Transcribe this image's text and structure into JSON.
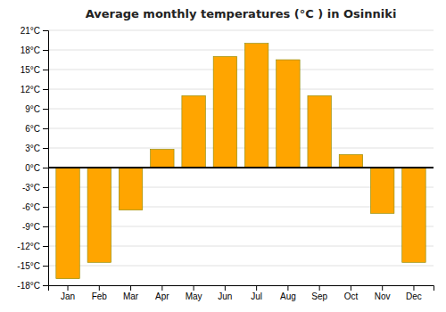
{
  "chart_data": {
    "type": "bar",
    "title": "Average monthly temperatures (°C ) in Osinniki",
    "categories": [
      "Jan",
      "Feb",
      "Mar",
      "Apr",
      "May",
      "Jun",
      "Jul",
      "Aug",
      "Sep",
      "Oct",
      "Nov",
      "Dec"
    ],
    "values": [
      -17,
      -14.5,
      -6.5,
      2.8,
      11,
      17,
      19,
      16.5,
      11,
      2,
      -7,
      -14.5
    ],
    "color": "#FFA500",
    "ylim": [
      -18,
      21
    ],
    "yticks": [
      {
        "value": -18,
        "label": "-18°C"
      },
      {
        "value": -15,
        "label": "-15°C"
      },
      {
        "value": -12,
        "label": "-12°C"
      },
      {
        "value": -9,
        "label": "-9°C"
      },
      {
        "value": -6,
        "label": "-6°C"
      },
      {
        "value": -3,
        "label": "-3°C"
      },
      {
        "value": 0,
        "label": "0°C"
      },
      {
        "value": 3,
        "label": "3°C"
      },
      {
        "value": 6,
        "label": "6°C"
      },
      {
        "value": 9,
        "label": "9°C"
      },
      {
        "value": 12,
        "label": "12°C"
      },
      {
        "value": 15,
        "label": "15°C"
      },
      {
        "value": 18,
        "label": "18°C"
      },
      {
        "value": 21,
        "label": "21°C"
      }
    ],
    "grid": true
  }
}
